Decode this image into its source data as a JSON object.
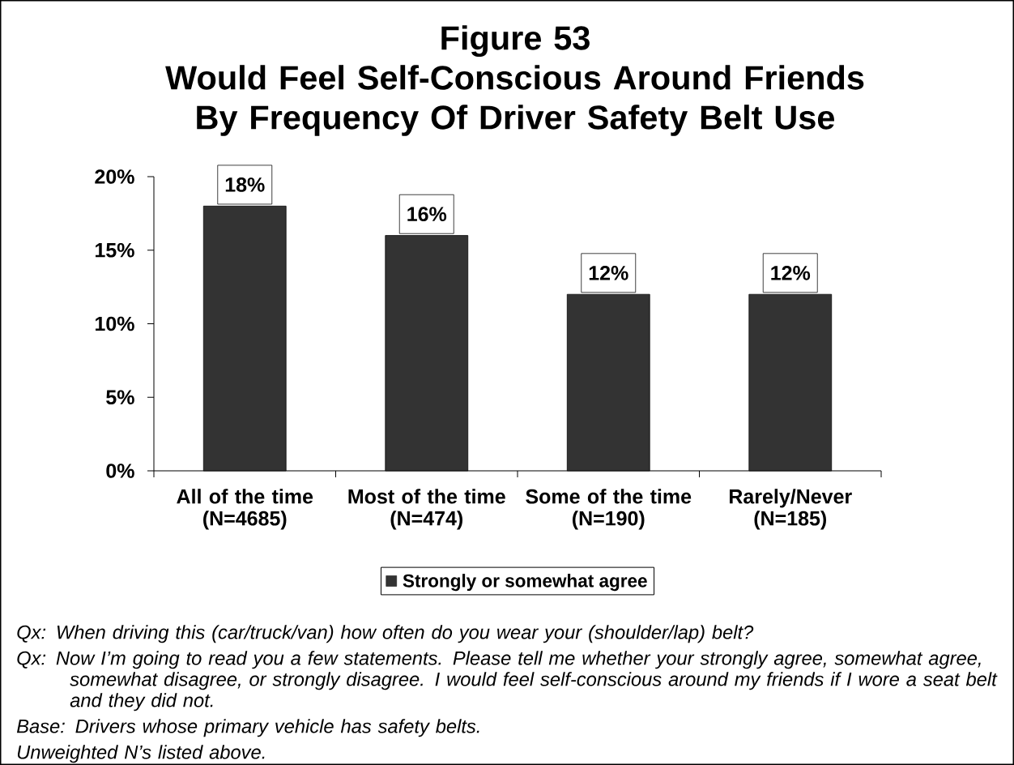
{
  "chart_data": {
    "type": "bar",
    "title": "Figure 53",
    "subtitle": "Would Feel Self-Conscious Around Friends By Frequency Of Driver Safety Belt Use",
    "categories": [
      "All of the time (N=4685)",
      "Most of the time (N=474)",
      "Some of the time (N=190)",
      "Rarely/Never (N=185)"
    ],
    "series": [
      {
        "name": "Strongly or somewhat agree",
        "color": "#333333",
        "values": [
          18,
          16,
          12,
          12
        ],
        "value_labels": [
          "18%",
          "16%",
          "12%",
          "12%"
        ]
      }
    ],
    "ylim": [
      0,
      20
    ],
    "yticks": [
      {
        "value": 0,
        "label": "0%"
      },
      {
        "value": 5,
        "label": "5%"
      },
      {
        "value": 10,
        "label": "10%"
      },
      {
        "value": 15,
        "label": "15%"
      },
      {
        "value": 20,
        "label": "20%"
      }
    ],
    "legend": "bottom",
    "annotations": [
      "Qx: When driving this (car/truck/van) how often do you wear your (shoulder/lap) belt?",
      "Qx: Now I’m going to read you a few statements. Please tell me whether your strongly agree, somewhat agree, somewhat disagree, or strongly disagree. I would feel self-conscious around my friends if I wore a seat belt and they did not.",
      "Base: Drivers whose primary vehicle has safety belts.",
      "Unweighted N’s listed above."
    ]
  }
}
